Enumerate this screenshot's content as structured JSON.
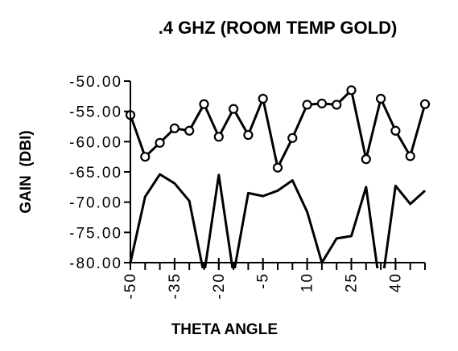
{
  "chart_data": {
    "type": "line",
    "title": ".4 GHZ (ROOM TEMP GOLD)",
    "x_label": "THETA ANGLE",
    "y_label": "GAIN  (DBI)",
    "x": [
      -50,
      -45,
      -40,
      -35,
      -30,
      -25,
      -20,
      -15,
      -10,
      -5,
      0,
      5,
      10,
      15,
      20,
      25,
      30,
      35,
      40,
      45,
      50
    ],
    "series": [
      {
        "color": "#000000",
        "marker": "open-circle",
        "values": [
          -55.6,
          -62.5,
          -60.2,
          -57.8,
          -58.2,
          -53.8,
          -59.2,
          -54.6,
          -58.9,
          -52.9,
          -64.3,
          -59.4,
          -53.9,
          -53.7,
          -53.9,
          -51.5,
          -62.9,
          -52.9,
          -58.2,
          -62.4,
          -53.8
        ]
      },
      {
        "color": "#000000",
        "marker": "none",
        "values": [
          -80,
          -69.1,
          -65.4,
          -66.9,
          -69.8,
          -82,
          -65.5,
          -82,
          -68.5,
          -69,
          -68.1,
          -66.4,
          -71.6,
          -80,
          -76,
          -75.6,
          -67.5,
          -85,
          -67.3,
          -70.3,
          -68.1
        ]
      }
    ],
    "xlim": [
      -50,
      50
    ],
    "ylim": [
      -80,
      -50
    ],
    "xticks": [
      -50,
      -35,
      -20,
      -5,
      10,
      25,
      40
    ],
    "yticks": [
      {
        "value": -50,
        "label": "-50.00"
      },
      {
        "value": -55,
        "label": "-55.00"
      },
      {
        "value": -60,
        "label": "-60.00"
      },
      {
        "value": -65,
        "label": "-65.00"
      },
      {
        "value": -70,
        "label": "-70.00"
      },
      {
        "value": -75,
        "label": "-75.00"
      },
      {
        "value": -80,
        "label": "-80.00"
      }
    ],
    "grid": false
  }
}
